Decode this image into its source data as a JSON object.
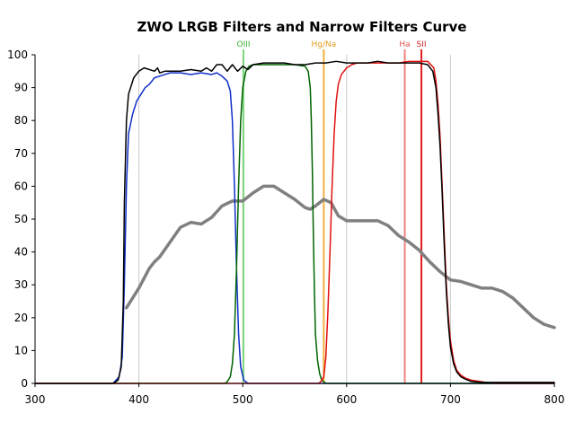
{
  "chart_data": {
    "type": "line",
    "title": "ZWO LRGB Filters and Narrow Filters Curve",
    "xlabel": "",
    "ylabel": "",
    "xlim": [
      300,
      800
    ],
    "ylim": [
      0,
      100
    ],
    "x_ticks": [
      300,
      400,
      500,
      600,
      700,
      800
    ],
    "y_ticks": [
      0,
      10,
      20,
      30,
      40,
      50,
      60,
      70,
      80,
      90,
      100
    ],
    "x_gridlines": [
      400,
      500,
      600,
      700
    ],
    "axis_color": "#000000",
    "grid_color": "#c8c8c8",
    "series": [
      {
        "key": "gray",
        "color": "#808080",
        "width": 3.5,
        "points": [
          [
            388,
            23
          ],
          [
            392,
            25
          ],
          [
            400,
            29
          ],
          [
            410,
            35
          ],
          [
            415,
            37
          ],
          [
            420,
            38.5
          ],
          [
            430,
            43
          ],
          [
            440,
            47.5
          ],
          [
            450,
            49
          ],
          [
            460,
            48.5
          ],
          [
            470,
            50.5
          ],
          [
            480,
            54
          ],
          [
            490,
            55.5
          ],
          [
            500,
            55.5
          ],
          [
            510,
            58
          ],
          [
            520,
            60
          ],
          [
            530,
            60
          ],
          [
            540,
            58
          ],
          [
            550,
            56
          ],
          [
            560,
            53.5
          ],
          [
            565,
            53
          ],
          [
            570,
            54
          ],
          [
            578,
            56
          ],
          [
            585,
            55
          ],
          [
            592,
            51
          ],
          [
            600,
            49.5
          ],
          [
            610,
            49.5
          ],
          [
            620,
            49.5
          ],
          [
            630,
            49.5
          ],
          [
            640,
            48
          ],
          [
            650,
            45
          ],
          [
            660,
            43
          ],
          [
            670,
            40.5
          ],
          [
            680,
            37
          ],
          [
            690,
            34
          ],
          [
            700,
            31.5
          ],
          [
            710,
            31
          ],
          [
            720,
            30
          ],
          [
            730,
            29
          ],
          [
            740,
            29
          ],
          [
            750,
            28
          ],
          [
            760,
            26
          ],
          [
            770,
            23
          ],
          [
            780,
            20
          ],
          [
            790,
            18
          ],
          [
            800,
            17
          ]
        ]
      },
      {
        "key": "blue",
        "color": "#1030c8",
        "width": 1.5,
        "points": [
          [
            300,
            0
          ],
          [
            375,
            0
          ],
          [
            381,
            2
          ],
          [
            384,
            8
          ],
          [
            386,
            30
          ],
          [
            388,
            60
          ],
          [
            390,
            76
          ],
          [
            394,
            82
          ],
          [
            398,
            86
          ],
          [
            402,
            88
          ],
          [
            406,
            90
          ],
          [
            410,
            91
          ],
          [
            415,
            93
          ],
          [
            420,
            93.5
          ],
          [
            425,
            94
          ],
          [
            430,
            94.5
          ],
          [
            440,
            94.5
          ],
          [
            450,
            94
          ],
          [
            460,
            94.5
          ],
          [
            470,
            94
          ],
          [
            475,
            94.5
          ],
          [
            480,
            93.5
          ],
          [
            485,
            92
          ],
          [
            488,
            89
          ],
          [
            490,
            80
          ],
          [
            492,
            60
          ],
          [
            494,
            35
          ],
          [
            496,
            15
          ],
          [
            498,
            5
          ],
          [
            501,
            1
          ],
          [
            505,
            0
          ],
          [
            800,
            0
          ]
        ]
      },
      {
        "key": "green",
        "color": "#006400",
        "width": 1.5,
        "points": [
          [
            300,
            0
          ],
          [
            483,
            0
          ],
          [
            485,
            0.5
          ],
          [
            488,
            2
          ],
          [
            490,
            6
          ],
          [
            492,
            15
          ],
          [
            494,
            35
          ],
          [
            496,
            60
          ],
          [
            498,
            80
          ],
          [
            500,
            90
          ],
          [
            503,
            95
          ],
          [
            506,
            96.5
          ],
          [
            510,
            97
          ],
          [
            520,
            97
          ],
          [
            530,
            97
          ],
          [
            540,
            97
          ],
          [
            550,
            97
          ],
          [
            560,
            96.5
          ],
          [
            563,
            95
          ],
          [
            565,
            90
          ],
          [
            566,
            80
          ],
          [
            567,
            65
          ],
          [
            568,
            45
          ],
          [
            569,
            28
          ],
          [
            570,
            15
          ],
          [
            572,
            7
          ],
          [
            574,
            3
          ],
          [
            576,
            1
          ],
          [
            580,
            0
          ],
          [
            800,
            0
          ]
        ]
      },
      {
        "key": "red",
        "color": "#e01010",
        "width": 1.5,
        "points": [
          [
            300,
            0
          ],
          [
            573,
            0
          ],
          [
            575,
            0.5
          ],
          [
            578,
            2
          ],
          [
            580,
            8
          ],
          [
            582,
            22
          ],
          [
            584,
            40
          ],
          [
            586,
            60
          ],
          [
            588,
            76
          ],
          [
            590,
            86
          ],
          [
            592,
            91
          ],
          [
            595,
            94
          ],
          [
            600,
            96
          ],
          [
            605,
            97
          ],
          [
            610,
            97.5
          ],
          [
            620,
            97.5
          ],
          [
            630,
            97.5
          ],
          [
            640,
            97.5
          ],
          [
            650,
            97.5
          ],
          [
            660,
            98
          ],
          [
            670,
            98
          ],
          [
            678,
            98
          ],
          [
            684,
            96
          ],
          [
            686,
            92
          ],
          [
            688,
            85
          ],
          [
            690,
            75
          ],
          [
            692,
            60
          ],
          [
            694,
            45
          ],
          [
            696,
            30
          ],
          [
            698,
            20
          ],
          [
            700,
            13
          ],
          [
            703,
            7
          ],
          [
            706,
            4
          ],
          [
            710,
            2.5
          ],
          [
            715,
            1.5
          ],
          [
            720,
            1
          ],
          [
            730,
            0.5
          ],
          [
            740,
            0
          ],
          [
            800,
            0
          ]
        ]
      },
      {
        "key": "black",
        "color": "#000000",
        "width": 1.5,
        "points": [
          [
            300,
            0
          ],
          [
            375,
            0
          ],
          [
            380,
            1
          ],
          [
            383,
            5
          ],
          [
            385,
            25
          ],
          [
            386,
            55
          ],
          [
            388,
            80
          ],
          [
            390,
            88
          ],
          [
            395,
            93
          ],
          [
            400,
            95
          ],
          [
            405,
            96
          ],
          [
            410,
            95.5
          ],
          [
            415,
            95
          ],
          [
            418,
            96
          ],
          [
            420,
            94.5
          ],
          [
            425,
            95
          ],
          [
            430,
            95
          ],
          [
            440,
            95
          ],
          [
            450,
            95.5
          ],
          [
            460,
            95
          ],
          [
            465,
            96
          ],
          [
            470,
            95
          ],
          [
            475,
            97
          ],
          [
            480,
            97
          ],
          [
            485,
            95
          ],
          [
            490,
            97
          ],
          [
            495,
            95
          ],
          [
            500,
            96.5
          ],
          [
            505,
            95.5
          ],
          [
            510,
            97
          ],
          [
            520,
            97.5
          ],
          [
            530,
            97.5
          ],
          [
            540,
            97.5
          ],
          [
            550,
            97
          ],
          [
            560,
            97
          ],
          [
            570,
            97.5
          ],
          [
            580,
            97.5
          ],
          [
            590,
            98
          ],
          [
            600,
            97.5
          ],
          [
            610,
            97.5
          ],
          [
            620,
            97.5
          ],
          [
            630,
            98
          ],
          [
            640,
            97.5
          ],
          [
            650,
            97.5
          ],
          [
            660,
            97.5
          ],
          [
            670,
            97.5
          ],
          [
            678,
            97
          ],
          [
            683,
            95
          ],
          [
            686,
            90
          ],
          [
            688,
            82
          ],
          [
            690,
            72
          ],
          [
            692,
            58
          ],
          [
            694,
            42
          ],
          [
            696,
            28
          ],
          [
            698,
            18
          ],
          [
            700,
            11
          ],
          [
            703,
            6
          ],
          [
            706,
            3.5
          ],
          [
            710,
            2
          ],
          [
            715,
            1.2
          ],
          [
            720,
            0.6
          ],
          [
            730,
            0.3
          ],
          [
            800,
            0.3
          ]
        ]
      }
    ],
    "vertical_lines": [
      {
        "key": "oiii",
        "x": 500.7,
        "label": "OIII",
        "color": "#80d880",
        "label_color": "#30b030",
        "width": 2
      },
      {
        "key": "hgna",
        "x": 578,
        "label": "Hg/Na",
        "color": "#f0b040",
        "label_color": "#e0a020",
        "width": 2
      },
      {
        "key": "ha",
        "x": 656,
        "label": "Ha",
        "color": "#f08080",
        "label_color": "#e05050",
        "width": 2
      },
      {
        "key": "sii",
        "x": 672,
        "label": "SII",
        "color": "#e02020",
        "label_color": "#d02020",
        "width": 2
      }
    ]
  }
}
